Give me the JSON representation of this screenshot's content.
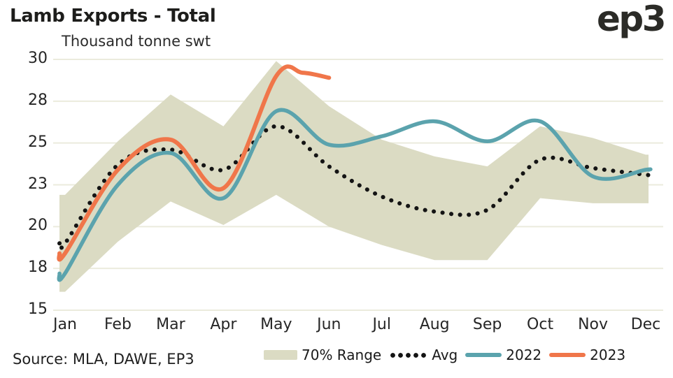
{
  "header": {
    "title": "Lamb Exports - Total",
    "subtitle": "Thousand tonne swt",
    "logo": "ep3"
  },
  "footer": {
    "source": "Source: MLA, DAWE, EP3"
  },
  "legend": {
    "items": [
      {
        "label": "70% Range",
        "marker": "band-swatch"
      },
      {
        "label": "Avg",
        "marker": "dotted-line"
      },
      {
        "label": "2022",
        "marker": "solid-line"
      },
      {
        "label": "2023",
        "marker": "solid-line"
      }
    ]
  },
  "colors": {
    "band": "#dbdbc3",
    "avg": "#141414",
    "y2022": "#5ba3ad",
    "y2023": "#f0764a",
    "grid": "#ebebdd",
    "text": "#262626"
  },
  "chart_data": {
    "type": "line",
    "title": "Lamb Exports - Total",
    "ylabel": "Thousand tonne swt",
    "xlabel": "",
    "ylim": [
      15,
      30
    ],
    "grid": "horizontal",
    "legend_position": "bottom",
    "categories": [
      "Jan",
      "Feb",
      "Mar",
      "Apr",
      "May",
      "Jun",
      "Jul",
      "Aug",
      "Sep",
      "Oct",
      "Nov",
      "Dec"
    ],
    "y_ticks": [
      {
        "label": "30",
        "value": 30
      },
      {
        "label": "28",
        "value": 27.5
      },
      {
        "label": "25",
        "value": 25
      },
      {
        "label": "23",
        "value": 22.5
      },
      {
        "label": "20",
        "value": 20
      },
      {
        "label": "18",
        "value": 17.5
      },
      {
        "label": "15",
        "value": 15
      }
    ],
    "band": {
      "name": "70% Range",
      "upper": [
        21.9,
        25.1,
        27.9,
        26.0,
        29.9,
        27.2,
        25.2,
        24.2,
        23.6,
        26.0,
        25.3,
        24.3
      ],
      "lower": [
        16.1,
        19.1,
        21.5,
        20.1,
        21.9,
        20.0,
        18.9,
        18.0,
        18.0,
        21.7,
        21.4,
        21.4
      ]
    },
    "series": [
      {
        "name": "Avg",
        "style": "dotted",
        "x": [
          0,
          1,
          2,
          3,
          4,
          5,
          6,
          7,
          8,
          9,
          10,
          11
        ],
        "values": [
          19.0,
          23.7,
          24.6,
          23.4,
          26.0,
          23.6,
          21.8,
          20.9,
          21.0,
          24.0,
          23.5,
          23.1
        ]
      },
      {
        "name": "2022",
        "style": "solid",
        "x": [
          0,
          1,
          2,
          3,
          4,
          5,
          6,
          7,
          8,
          9,
          10,
          11
        ],
        "values": [
          17.2,
          22.5,
          24.4,
          21.7,
          26.9,
          24.9,
          25.4,
          26.3,
          25.1,
          26.3,
          23.0,
          23.4
        ]
      },
      {
        "name": "2023",
        "style": "solid",
        "partial": true,
        "x": [
          0,
          1,
          2,
          3,
          4,
          4.5,
          5
        ],
        "values": [
          18.4,
          23.4,
          25.2,
          22.3,
          29.0,
          29.2,
          28.9
        ]
      }
    ]
  }
}
